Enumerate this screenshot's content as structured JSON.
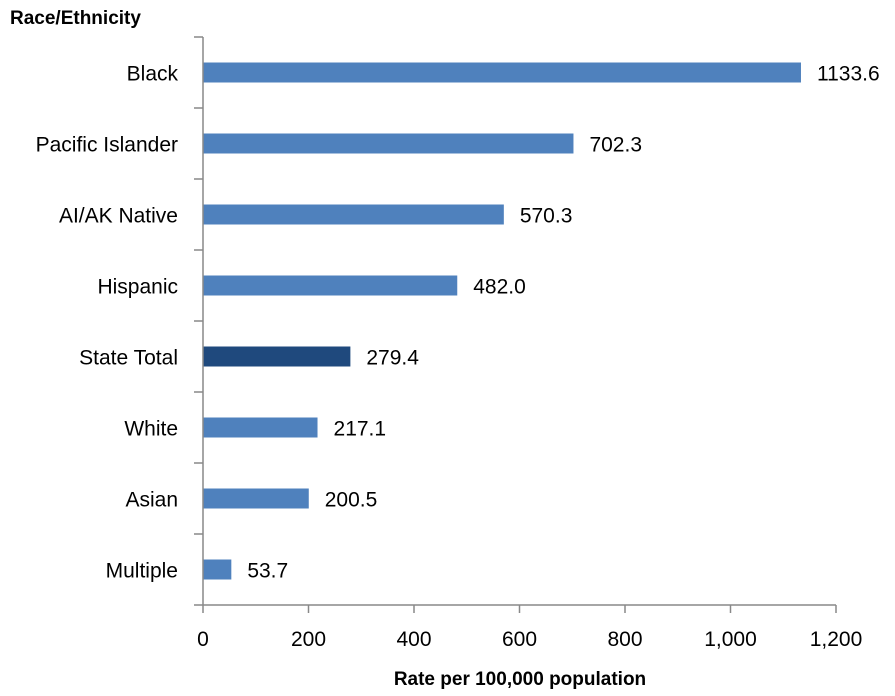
{
  "chart_data": {
    "type": "bar",
    "orientation": "horizontal",
    "ylabel": "Race/Ethnicity",
    "xlabel": "Rate per 100,000 population",
    "categories": [
      "Black",
      "Pacific Islander",
      "AI/AK Native",
      "Hispanic",
      "State Total",
      "White",
      "Asian",
      "Multiple"
    ],
    "values": [
      1133.6,
      702.3,
      570.3,
      482.0,
      279.4,
      217.1,
      200.5,
      53.7
    ],
    "data_labels": [
      "1133.6",
      "702.3",
      "570.3",
      "482.0",
      "279.4",
      "217.1",
      "200.5",
      "53.7"
    ],
    "xlim": [
      0,
      1200
    ],
    "xticks": [
      0,
      200,
      400,
      600,
      800,
      1000,
      1200
    ],
    "xtick_labels": [
      "0",
      "200",
      "400",
      "600",
      "800",
      "1,000",
      "1,200"
    ],
    "grid": false,
    "legend": "none",
    "colors": {
      "bar": "#4f81bd",
      "highlight": "#1f497d",
      "highlight_category": "State Total",
      "axis": "#898989"
    }
  }
}
